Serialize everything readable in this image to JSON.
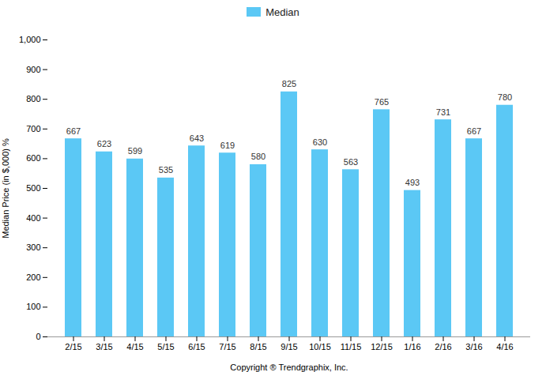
{
  "chart_data": {
    "type": "bar",
    "categories": [
      "2/15",
      "3/15",
      "4/15",
      "5/15",
      "6/15",
      "7/15",
      "8/15",
      "9/15",
      "10/15",
      "11/15",
      "12/15",
      "1/16",
      "2/16",
      "3/16",
      "4/16"
    ],
    "series": [
      {
        "name": "Median",
        "color": "#5BC8F5",
        "values": [
          667,
          623,
          599,
          535,
          643,
          619,
          580,
          825,
          630,
          563,
          765,
          493,
          731,
          667,
          780
        ]
      }
    ],
    "ylabel": "Median Price (in $,000) %",
    "xlabel": "Copyright ® Trendgraphix, Inc.",
    "ylim": [
      0,
      1000
    ],
    "yticks": [
      0,
      100,
      200,
      300,
      400,
      500,
      600,
      700,
      800,
      900,
      1000
    ],
    "grid": false,
    "legend": "top",
    "data_labels": true
  }
}
